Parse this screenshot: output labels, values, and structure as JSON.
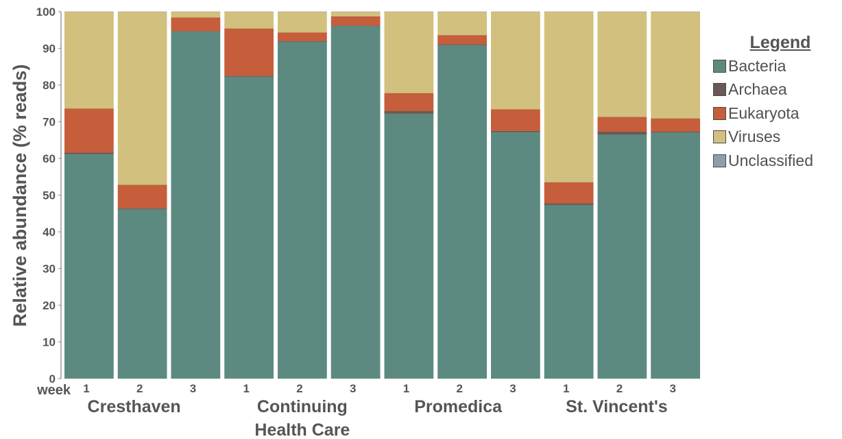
{
  "chart_data": {
    "type": "bar",
    "stacked": true,
    "ylabel": "Relative abundance (% reads)",
    "ylim": [
      0,
      100
    ],
    "yticks": [
      "0",
      "10",
      "20",
      "30",
      "40",
      "50",
      "60",
      "70",
      "80",
      "90",
      "100"
    ],
    "x_prefix": "week",
    "categories": [
      "1",
      "2",
      "3",
      "1",
      "2",
      "3",
      "1",
      "2",
      "3",
      "1",
      "2",
      "3"
    ],
    "groups": [
      {
        "label": "Cresthaven"
      },
      {
        "label": "Continuing Health Care"
      },
      {
        "label": "Promedica"
      },
      {
        "label": "St. Vincent's"
      }
    ],
    "legend": {
      "title": "Legend",
      "position": "right"
    },
    "grid": false,
    "series": [
      {
        "name": "Bacteria",
        "color": "#5c8a81",
        "values": [
          61.2,
          46.2,
          94.6,
          82.3,
          91.8,
          96.1,
          72.2,
          90.9,
          67.2,
          47.3,
          66.5,
          67.1
        ]
      },
      {
        "name": "Archaea",
        "color": "#6b5a52",
        "values": [
          0.4,
          0.2,
          0.1,
          0.2,
          0.2,
          0.1,
          0.7,
          0.2,
          0.3,
          0.5,
          0.8,
          0.2
        ]
      },
      {
        "name": "Eukaryota",
        "color": "#c65d3b",
        "values": [
          12.0,
          6.4,
          3.7,
          12.9,
          2.3,
          2.5,
          4.9,
          2.5,
          5.9,
          5.7,
          4.0,
          3.6
        ]
      },
      {
        "name": "Viruses",
        "color": "#d2c07e",
        "values": [
          26.4,
          47.2,
          1.6,
          4.6,
          5.7,
          1.3,
          22.2,
          6.4,
          26.6,
          46.5,
          28.7,
          29.1
        ]
      },
      {
        "name": "Unclassified",
        "color": "#8aa1a9",
        "values": [
          0,
          0,
          0,
          0,
          0,
          0,
          0,
          0,
          0,
          0,
          0,
          0
        ]
      }
    ]
  }
}
